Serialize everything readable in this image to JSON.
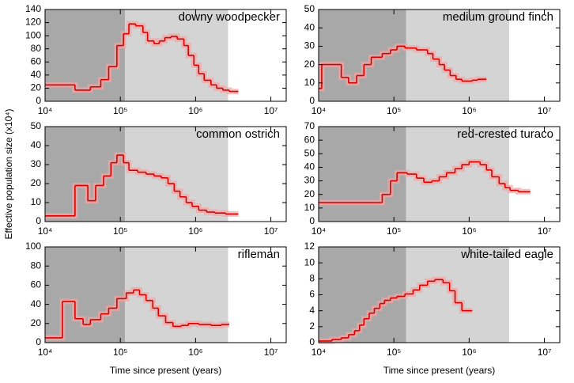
{
  "ylabel": "Effective population size (x10⁴)",
  "chart_data": [
    {
      "type": "step",
      "title": "downy woodpecker",
      "xscale": "log",
      "xlim": [
        10000,
        16000000
      ],
      "ylim": [
        0,
        140
      ],
      "yticks": [
        0,
        20,
        40,
        60,
        80,
        100,
        120,
        140
      ],
      "xticks": [
        {
          "value": 10000,
          "label": "10⁴"
        },
        {
          "value": 100000,
          "label": "10⁵"
        },
        {
          "value": 1000000,
          "label": "10⁶"
        },
        {
          "value": 10000000,
          "label": "10⁷"
        }
      ],
      "shading": [
        {
          "from": 10000,
          "to": 115000,
          "color": "#a8a8a8"
        },
        {
          "from": 115000,
          "to": 2700000,
          "color": "#d4d4d4"
        }
      ],
      "color": "#d40000",
      "x": [
        10000,
        25000,
        40000,
        55000,
        70000,
        90000,
        110000,
        130000,
        160000,
        200000,
        230000,
        280000,
        330000,
        390000,
        470000,
        570000,
        700000,
        800000,
        950000,
        1100000,
        1300000,
        1600000,
        1900000,
        2300000,
        2800000,
        3700000
      ],
      "values": [
        25,
        17,
        22,
        33,
        53,
        85,
        103,
        118,
        115,
        105,
        92,
        88,
        92,
        97,
        99,
        95,
        85,
        70,
        55,
        42,
        32,
        25,
        20,
        17,
        15,
        15
      ]
    },
    {
      "type": "step",
      "title": "medium ground finch",
      "xscale": "log",
      "xlim": [
        10000,
        16000000
      ],
      "ylim": [
        0,
        50
      ],
      "yticks": [
        0,
        10,
        20,
        30,
        40,
        50
      ],
      "xticks": [
        {
          "value": 10000,
          "label": "10⁴"
        },
        {
          "value": 100000,
          "label": "10⁵"
        },
        {
          "value": 1000000,
          "label": "10⁶"
        },
        {
          "value": 10000000,
          "label": "10⁷"
        }
      ],
      "shading": [
        {
          "from": 10000,
          "to": 145000,
          "color": "#a8a8a8"
        },
        {
          "from": 145000,
          "to": 3400000,
          "color": "#d4d4d4"
        }
      ],
      "color": "#d40000",
      "x": [
        10000,
        11000,
        20000,
        25000,
        32000,
        40000,
        50000,
        70000,
        90000,
        110000,
        140000,
        200000,
        280000,
        330000,
        400000,
        470000,
        560000,
        670000,
        800000,
        1100000,
        1300000,
        1700000
      ],
      "values": [
        7,
        20,
        13,
        10,
        14,
        20,
        24,
        26,
        28,
        30,
        29,
        28,
        26,
        23,
        20,
        17,
        14,
        12,
        11,
        11.5,
        12,
        12
      ]
    },
    {
      "type": "step",
      "title": "common ostrich",
      "xscale": "log",
      "xlim": [
        10000,
        16000000
      ],
      "ylim": [
        0,
        50
      ],
      "yticks": [
        0,
        10,
        20,
        30,
        40,
        50
      ],
      "xticks": [
        {
          "value": 10000,
          "label": "10⁴"
        },
        {
          "value": 100000,
          "label": "10⁵"
        },
        {
          "value": 1000000,
          "label": "10⁶"
        },
        {
          "value": 10000000,
          "label": "10⁷"
        }
      ],
      "shading": [
        {
          "from": 10000,
          "to": 115000,
          "color": "#a8a8a8"
        },
        {
          "from": 115000,
          "to": 2700000,
          "color": "#d4d4d4"
        }
      ],
      "color": "#d40000",
      "x": [
        10000,
        25000,
        37000,
        47000,
        60000,
        75000,
        90000,
        110000,
        130000,
        170000,
        220000,
        280000,
        350000,
        430000,
        520000,
        620000,
        750000,
        900000,
        1100000,
        1400000,
        1800000,
        2500000,
        3700000
      ],
      "values": [
        3,
        19,
        11,
        19,
        24,
        31,
        35,
        31,
        27,
        26,
        25,
        24,
        23,
        20,
        16,
        13,
        10,
        8,
        6,
        5,
        4.5,
        4,
        4
      ]
    },
    {
      "type": "step",
      "title": "red-crested turaco",
      "xscale": "log",
      "xlim": [
        10000,
        16000000
      ],
      "ylim": [
        0,
        70
      ],
      "yticks": [
        0,
        10,
        20,
        30,
        40,
        50,
        60,
        70
      ],
      "xticks": [
        {
          "value": 10000,
          "label": "10⁴"
        },
        {
          "value": 100000,
          "label": "10⁵"
        },
        {
          "value": 1000000,
          "label": "10⁶"
        },
        {
          "value": 10000000,
          "label": "10⁷"
        }
      ],
      "shading": [
        {
          "from": 10000,
          "to": 145000,
          "color": "#a8a8a8"
        },
        {
          "from": 145000,
          "to": 3400000,
          "color": "#d4d4d4"
        }
      ],
      "color": "#d40000",
      "x": [
        10000,
        70000,
        90000,
        110000,
        150000,
        200000,
        250000,
        320000,
        400000,
        500000,
        650000,
        800000,
        1000000,
        1400000,
        1700000,
        2000000,
        2500000,
        3000000,
        3500000,
        4500000,
        6500000
      ],
      "values": [
        14,
        20,
        30,
        36,
        35,
        32,
        29,
        30,
        33,
        36,
        39,
        42,
        44,
        42,
        38,
        33,
        28,
        25,
        23,
        22,
        22
      ]
    },
    {
      "type": "step",
      "title": "rifleman",
      "xlabel": "Time since present (years)",
      "xscale": "log",
      "xlim": [
        10000,
        16000000
      ],
      "ylim": [
        0,
        100
      ],
      "yticks": [
        0,
        20,
        40,
        60,
        80,
        100
      ],
      "xticks": [
        {
          "value": 10000,
          "label": "10⁴"
        },
        {
          "value": 100000,
          "label": "10⁵"
        },
        {
          "value": 1000000,
          "label": "10⁶"
        },
        {
          "value": 10000000,
          "label": "10⁷"
        }
      ],
      "shading": [
        {
          "from": 10000,
          "to": 115000,
          "color": "#a8a8a8"
        },
        {
          "from": 115000,
          "to": 2700000,
          "color": "#d4d4d4"
        }
      ],
      "color": "#d40000",
      "x": [
        10000,
        17000,
        25000,
        32000,
        40000,
        55000,
        70000,
        90000,
        120000,
        150000,
        180000,
        220000,
        270000,
        320000,
        400000,
        500000,
        650000,
        800000,
        1100000,
        1600000,
        2200000,
        2800000
      ],
      "values": [
        5,
        43,
        25,
        19,
        24,
        30,
        36,
        46,
        52,
        55,
        50,
        44,
        36,
        28,
        21,
        17,
        18,
        20,
        19,
        18,
        19,
        19
      ]
    },
    {
      "type": "step",
      "title": "white-tailed eagle",
      "xlabel": "Time since present (years)",
      "xscale": "log",
      "xlim": [
        10000,
        16000000
      ],
      "ylim": [
        0,
        12
      ],
      "yticks": [
        0,
        2,
        4,
        6,
        8,
        10,
        12
      ],
      "xticks": [
        {
          "value": 10000,
          "label": "10⁴"
        },
        {
          "value": 100000,
          "label": "10⁵"
        },
        {
          "value": 1000000,
          "label": "10⁶"
        },
        {
          "value": 10000000,
          "label": "10⁷"
        }
      ],
      "shading": [
        {
          "from": 10000,
          "to": 145000,
          "color": "#a8a8a8"
        },
        {
          "from": 145000,
          "to": 3400000,
          "color": "#d4d4d4"
        }
      ],
      "color": "#d40000",
      "x": [
        10000,
        15000,
        20000,
        25000,
        30000,
        35000,
        40000,
        47000,
        55000,
        65000,
        75000,
        90000,
        110000,
        140000,
        180000,
        220000,
        280000,
        350000,
        450000,
        550000,
        650000,
        800000,
        1100000
      ],
      "values": [
        0.2,
        0.4,
        0.6,
        1.0,
        1.5,
        2.2,
        3,
        3.7,
        4.3,
        4.9,
        5.3,
        5.6,
        5.8,
        6.1,
        6.6,
        7.2,
        7.7,
        7.9,
        7.5,
        6.5,
        5,
        4,
        4
      ]
    }
  ]
}
